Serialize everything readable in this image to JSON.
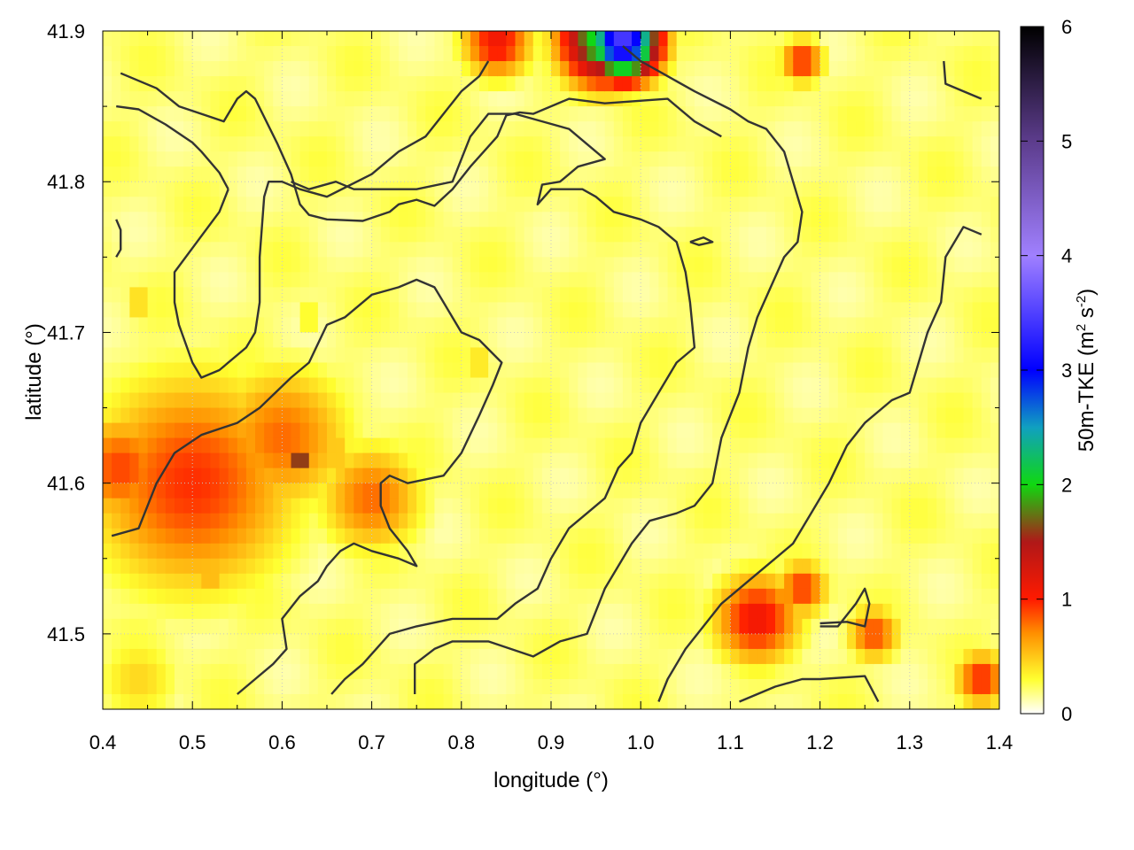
{
  "chart_data": {
    "type": "heatmap",
    "xlabel": "longitude (°)",
    "ylabel": "latitude (°)",
    "colorbar_label": [
      "50m-TKE (m",
      "2",
      " s",
      "-2",
      ")"
    ],
    "xlim": [
      0.4,
      1.4
    ],
    "ylim": [
      41.45,
      41.9
    ],
    "xticks": [
      "0.4",
      "0.5",
      "0.6",
      "0.7",
      "0.8",
      "0.9",
      "1.0",
      "1.1",
      "1.2",
      "1.3",
      "1.4"
    ],
    "xtick_values": [
      0.4,
      0.5,
      0.6,
      0.7,
      0.8,
      0.9,
      1.0,
      1.1,
      1.2,
      1.3,
      1.4
    ],
    "yticks": [
      "41.5",
      "41.6",
      "41.7",
      "41.8",
      "41.9"
    ],
    "ytick_values": [
      41.5,
      41.6,
      41.7,
      41.8,
      41.9
    ],
    "clim": [
      0,
      6
    ],
    "cticks": [
      "0",
      "1",
      "2",
      "3",
      "4",
      "5",
      "6"
    ],
    "cmap": [
      [
        0.0,
        "#ffffff"
      ],
      [
        0.3,
        "#ffff30"
      ],
      [
        0.7,
        "#ff9000"
      ],
      [
        1.0,
        "#ff1a00"
      ],
      [
        1.5,
        "#b01818"
      ],
      [
        2.0,
        "#10d810"
      ],
      [
        2.5,
        "#10a0c0"
      ],
      [
        3.0,
        "#0000ff"
      ],
      [
        4.0,
        "#a080ff"
      ],
      [
        5.0,
        "#5c3c8c"
      ],
      [
        6.0,
        "#000000"
      ]
    ],
    "grid": true,
    "tke_hotspots": [
      {
        "lon": 0.5,
        "lat": 41.6,
        "value": 0.95,
        "r": 0.12
      },
      {
        "lon": 0.6,
        "lat": 41.63,
        "value": 0.8,
        "r": 0.08
      },
      {
        "lon": 0.7,
        "lat": 41.59,
        "value": 0.8,
        "r": 0.06
      },
      {
        "lon": 0.42,
        "lat": 41.61,
        "value": 0.9,
        "r": 0.06
      },
      {
        "lon": 0.62,
        "lat": 41.615,
        "value": 1.9,
        "r": 0.012
      },
      {
        "lon": 0.66,
        "lat": 41.62,
        "value": 1.2,
        "r": 0.01
      },
      {
        "lon": 0.98,
        "lat": 41.893,
        "value": 3.5,
        "r": 0.04
      },
      {
        "lon": 0.96,
        "lat": 41.895,
        "value": 2.2,
        "r": 0.05
      },
      {
        "lon": 0.84,
        "lat": 41.893,
        "value": 1.1,
        "r": 0.04
      },
      {
        "lon": 1.18,
        "lat": 41.88,
        "value": 1.0,
        "r": 0.025
      },
      {
        "lon": 1.13,
        "lat": 41.51,
        "value": 1.1,
        "r": 0.05
      },
      {
        "lon": 1.18,
        "lat": 41.53,
        "value": 0.95,
        "r": 0.03
      },
      {
        "lon": 1.26,
        "lat": 41.5,
        "value": 0.9,
        "r": 0.03
      },
      {
        "lon": 1.38,
        "lat": 41.47,
        "value": 1.0,
        "r": 0.03
      },
      {
        "lon": 0.63,
        "lat": 41.71,
        "value": 0.45,
        "r": 0.015
      },
      {
        "lon": 0.44,
        "lat": 41.72,
        "value": 0.6,
        "r": 0.015
      },
      {
        "lon": 0.82,
        "lat": 41.68,
        "value": 0.55,
        "r": 0.015
      },
      {
        "lon": 0.52,
        "lat": 41.54,
        "value": 0.8,
        "r": 0.015
      },
      {
        "lon": 0.44,
        "lat": 41.47,
        "value": 0.45,
        "r": 0.05
      }
    ],
    "contours": [
      [
        [
          0.42,
          41.872
        ],
        [
          0.46,
          41.862
        ],
        [
          0.485,
          41.85
        ],
        [
          0.535,
          41.84
        ],
        [
          0.55,
          41.855
        ],
        [
          0.56,
          41.86
        ],
        [
          0.57,
          41.855
        ],
        [
          0.595,
          41.825
        ],
        [
          0.61,
          41.805
        ],
        [
          0.62,
          41.785
        ],
        [
          0.63,
          41.778
        ],
        [
          0.65,
          41.775
        ],
        [
          0.69,
          41.774
        ],
        [
          0.72,
          41.78
        ],
        [
          0.73,
          41.785
        ],
        [
          0.75,
          41.788
        ],
        [
          0.77,
          41.784
        ],
        [
          0.79,
          41.795
        ],
        [
          0.81,
          41.81
        ],
        [
          0.84,
          41.83
        ],
        [
          0.85,
          41.844
        ],
        [
          0.865,
          41.846
        ],
        [
          0.88,
          41.845
        ],
        [
          0.92,
          41.855
        ],
        [
          0.96,
          41.852
        ],
        [
          1.03,
          41.855
        ],
        [
          1.06,
          41.84
        ],
        [
          1.09,
          41.83
        ]
      ],
      [
        [
          0.415,
          41.85
        ],
        [
          0.44,
          41.848
        ],
        [
          0.47,
          41.838
        ],
        [
          0.5,
          41.826
        ],
        [
          0.51,
          41.82
        ],
        [
          0.53,
          41.806
        ],
        [
          0.54,
          41.795
        ]
      ],
      [
        [
          0.54,
          41.795
        ],
        [
          0.53,
          41.78
        ],
        [
          0.505,
          41.76
        ],
        [
          0.48,
          41.74
        ],
        [
          0.48,
          41.72
        ],
        [
          0.485,
          41.705
        ],
        [
          0.5,
          41.68
        ],
        [
          0.51,
          41.67
        ],
        [
          0.53,
          41.675
        ],
        [
          0.56,
          41.69
        ],
        [
          0.57,
          41.7
        ],
        [
          0.575,
          41.72
        ],
        [
          0.575,
          41.75
        ],
        [
          0.58,
          41.79
        ],
        [
          0.585,
          41.8
        ],
        [
          0.6,
          41.8
        ],
        [
          0.62,
          41.795
        ],
        [
          0.65,
          41.79
        ],
        [
          0.7,
          41.805
        ],
        [
          0.73,
          41.82
        ],
        [
          0.76,
          41.83
        ],
        [
          0.78,
          41.845
        ],
        [
          0.8,
          41.86
        ],
        [
          0.82,
          41.87
        ],
        [
          0.83,
          41.88
        ]
      ],
      [
        [
          0.41,
          41.565
        ],
        [
          0.44,
          41.57
        ],
        [
          0.46,
          41.6
        ],
        [
          0.48,
          41.62
        ],
        [
          0.51,
          41.632
        ],
        [
          0.55,
          41.64
        ],
        [
          0.575,
          41.65
        ],
        [
          0.61,
          41.67
        ],
        [
          0.63,
          41.68
        ],
        [
          0.65,
          41.705
        ],
        [
          0.67,
          41.71
        ],
        [
          0.7,
          41.725
        ],
        [
          0.73,
          41.73
        ],
        [
          0.75,
          41.735
        ],
        [
          0.77,
          41.73
        ],
        [
          0.78,
          41.72
        ],
        [
          0.8,
          41.7
        ],
        [
          0.82,
          41.695
        ],
        [
          0.845,
          41.68
        ],
        [
          0.835,
          41.665
        ],
        [
          0.82,
          41.645
        ],
        [
          0.8,
          41.62
        ],
        [
          0.78,
          41.605
        ],
        [
          0.74,
          41.6
        ],
        [
          0.72,
          41.605
        ],
        [
          0.71,
          41.6
        ],
        [
          0.71,
          41.585
        ],
        [
          0.72,
          41.57
        ],
        [
          0.74,
          41.555
        ],
        [
          0.75,
          41.545
        ],
        [
          0.73,
          41.55
        ],
        [
          0.7,
          41.555
        ],
        [
          0.68,
          41.56
        ],
        [
          0.665,
          41.555
        ],
        [
          0.65,
          41.545
        ],
        [
          0.64,
          41.535
        ],
        [
          0.62,
          41.525
        ],
        [
          0.6,
          41.51
        ],
        [
          0.605,
          41.49
        ],
        [
          0.59,
          41.48
        ],
        [
          0.57,
          41.47
        ],
        [
          0.55,
          41.46
        ]
      ],
      [
        [
          0.655,
          41.46
        ],
        [
          0.67,
          41.47
        ],
        [
          0.69,
          41.48
        ],
        [
          0.72,
          41.5
        ],
        [
          0.75,
          41.505
        ],
        [
          0.79,
          41.51
        ],
        [
          0.84,
          41.51
        ],
        [
          0.86,
          41.52
        ],
        [
          0.885,
          41.53
        ],
        [
          0.9,
          41.55
        ],
        [
          0.92,
          41.57
        ],
        [
          0.94,
          41.58
        ],
        [
          0.96,
          41.59
        ],
        [
          0.975,
          41.61
        ],
        [
          0.99,
          41.62
        ],
        [
          1.0,
          41.64
        ],
        [
          1.02,
          41.66
        ],
        [
          1.04,
          41.68
        ],
        [
          1.06,
          41.69
        ],
        [
          1.055,
          41.72
        ],
        [
          1.05,
          41.74
        ],
        [
          1.04,
          41.76
        ],
        [
          1.02,
          41.77
        ],
        [
          1.0,
          41.775
        ],
        [
          0.97,
          41.78
        ],
        [
          0.95,
          41.79
        ],
        [
          0.935,
          41.795
        ],
        [
          0.9,
          41.795
        ],
        [
          0.885,
          41.785
        ],
        [
          0.89,
          41.798
        ],
        [
          0.91,
          41.8
        ],
        [
          0.93,
          41.81
        ],
        [
          0.96,
          41.815
        ],
        [
          0.94,
          41.825
        ],
        [
          0.92,
          41.835
        ],
        [
          0.89,
          41.84
        ],
        [
          0.86,
          41.845
        ],
        [
          0.83,
          41.845
        ],
        [
          0.81,
          41.83
        ],
        [
          0.79,
          41.8
        ],
        [
          0.75,
          41.795
        ],
        [
          0.72,
          41.795
        ],
        [
          0.68,
          41.795
        ],
        [
          0.66,
          41.8
        ],
        [
          0.63,
          41.795
        ],
        [
          0.61,
          41.8
        ]
      ],
      [
        [
          0.748,
          41.46
        ],
        [
          0.748,
          41.48
        ],
        [
          0.77,
          41.49
        ],
        [
          0.79,
          41.495
        ],
        [
          0.83,
          41.495
        ],
        [
          0.88,
          41.485
        ],
        [
          0.91,
          41.495
        ],
        [
          0.94,
          41.5
        ],
        [
          0.96,
          41.53
        ],
        [
          0.99,
          41.56
        ],
        [
          1.01,
          41.575
        ],
        [
          1.04,
          41.58
        ],
        [
          1.06,
          41.585
        ],
        [
          1.08,
          41.6
        ],
        [
          1.09,
          41.63
        ],
        [
          1.11,
          41.66
        ],
        [
          1.12,
          41.69
        ],
        [
          1.13,
          41.71
        ],
        [
          1.145,
          41.73
        ],
        [
          1.16,
          41.75
        ],
        [
          1.175,
          41.76
        ],
        [
          1.18,
          41.78
        ],
        [
          1.17,
          41.8
        ],
        [
          1.16,
          41.82
        ],
        [
          1.14,
          41.835
        ],
        [
          1.12,
          41.84
        ],
        [
          1.1,
          41.848
        ],
        [
          1.06,
          41.86
        ],
        [
          1.03,
          41.87
        ],
        [
          1.0,
          41.88
        ],
        [
          0.98,
          41.89
        ]
      ],
      [
        [
          1.02,
          41.455
        ],
        [
          1.03,
          41.47
        ],
        [
          1.05,
          41.49
        ],
        [
          1.07,
          41.505
        ],
        [
          1.09,
          41.52
        ],
        [
          1.12,
          41.535
        ],
        [
          1.15,
          41.55
        ],
        [
          1.17,
          41.56
        ],
        [
          1.19,
          41.58
        ],
        [
          1.21,
          41.6
        ],
        [
          1.23,
          41.625
        ],
        [
          1.25,
          41.64
        ],
        [
          1.28,
          41.655
        ],
        [
          1.3,
          41.66
        ],
        [
          1.31,
          41.68
        ],
        [
          1.32,
          41.7
        ],
        [
          1.335,
          41.72
        ],
        [
          1.34,
          41.75
        ],
        [
          1.36,
          41.77
        ],
        [
          1.38,
          41.765
        ]
      ],
      [
        [
          1.11,
          41.455
        ],
        [
          1.15,
          41.465
        ],
        [
          1.18,
          41.47
        ],
        [
          1.2,
          41.47
        ],
        [
          1.25,
          41.472
        ],
        [
          1.265,
          41.455
        ]
      ],
      [
        [
          1.2,
          41.507
        ],
        [
          1.23,
          41.508
        ],
        [
          1.25,
          41.505
        ],
        [
          1.255,
          41.52
        ],
        [
          1.25,
          41.53
        ],
        [
          1.24,
          41.52
        ],
        [
          1.22,
          41.505
        ],
        [
          1.2,
          41.505
        ]
      ],
      [
        [
          1.055,
          41.76
        ],
        [
          1.07,
          41.763
        ],
        [
          1.08,
          41.76
        ],
        [
          1.065,
          41.758
        ],
        [
          1.055,
          41.76
        ]
      ],
      [
        [
          1.338,
          41.88
        ],
        [
          1.34,
          41.865
        ],
        [
          1.36,
          41.86
        ],
        [
          1.38,
          41.855
        ]
      ],
      [
        [
          0.415,
          41.775
        ],
        [
          0.42,
          41.768
        ],
        [
          0.42,
          41.755
        ],
        [
          0.415,
          41.75
        ]
      ]
    ]
  }
}
